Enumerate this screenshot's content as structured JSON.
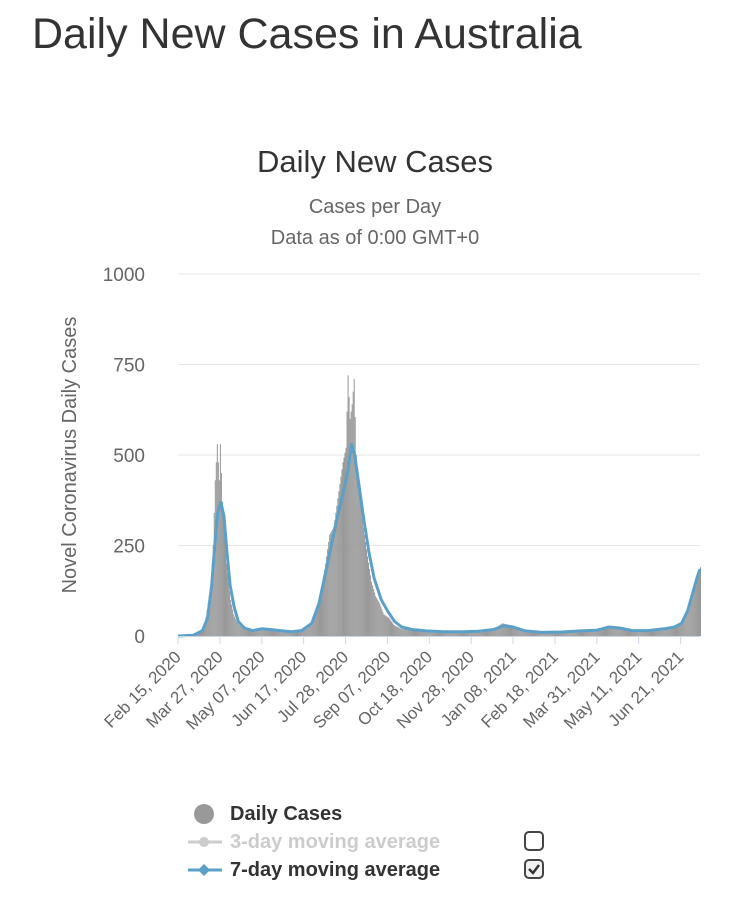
{
  "page": {
    "title": "Daily New Cases in Australia"
  },
  "chart_data": {
    "type": "bar",
    "title": "Daily New Cases",
    "subtitle": [
      "Cases per Day",
      "Data as of 0:00 GMT+0"
    ],
    "ylabel": "Novel Coronavirus Daily Cases",
    "ylim": [
      0,
      1000
    ],
    "yticks": [
      0,
      250,
      500,
      750,
      1000
    ],
    "xlim": [
      "2020-02-15",
      "2021-07-10"
    ],
    "xticks": [
      "Feb 15, 2020",
      "Mar 27, 2020",
      "May 07, 2020",
      "Jun 17, 2020",
      "Jul 28, 2020",
      "Sep 07, 2020",
      "Oct 18, 2020",
      "Nov 28, 2020",
      "Jan 08, 2021",
      "Feb 18, 2021",
      "Mar 31, 2021",
      "May 11, 2021",
      "Jun 21, 2021"
    ],
    "grid": true,
    "colors": {
      "bars": "#999999",
      "avg3": "#cccccc",
      "avg7": "#5aa0c8"
    },
    "daily_cases": [
      [
        "2020-02-15",
        0
      ],
      [
        "2020-03-01",
        3
      ],
      [
        "2020-03-08",
        15
      ],
      [
        "2020-03-12",
        35
      ],
      [
        "2020-03-15",
        90
      ],
      [
        "2020-03-18",
        150
      ],
      [
        "2020-03-20",
        250
      ],
      [
        "2020-03-22",
        430
      ],
      [
        "2020-03-24",
        530
      ],
      [
        "2020-03-26",
        430
      ],
      [
        "2020-03-27",
        530
      ],
      [
        "2020-03-29",
        370
      ],
      [
        "2020-03-31",
        300
      ],
      [
        "2020-04-02",
        200
      ],
      [
        "2020-04-04",
        150
      ],
      [
        "2020-04-06",
        100
      ],
      [
        "2020-04-09",
        60
      ],
      [
        "2020-04-12",
        40
      ],
      [
        "2020-04-15",
        30
      ],
      [
        "2020-04-20",
        20
      ],
      [
        "2020-04-25",
        15
      ],
      [
        "2020-05-05",
        18
      ],
      [
        "2020-05-15",
        15
      ],
      [
        "2020-05-25",
        12
      ],
      [
        "2020-06-05",
        10
      ],
      [
        "2020-06-15",
        15
      ],
      [
        "2020-06-20",
        25
      ],
      [
        "2020-06-25",
        40
      ],
      [
        "2020-06-30",
        70
      ],
      [
        "2020-07-04",
        130
      ],
      [
        "2020-07-08",
        200
      ],
      [
        "2020-07-12",
        280
      ],
      [
        "2020-07-16",
        300
      ],
      [
        "2020-07-20",
        380
      ],
      [
        "2020-07-22",
        420
      ],
      [
        "2020-07-25",
        480
      ],
      [
        "2020-07-28",
        520
      ],
      [
        "2020-07-30",
        720
      ],
      [
        "2020-08-01",
        600
      ],
      [
        "2020-08-03",
        640
      ],
      [
        "2020-08-05",
        710
      ],
      [
        "2020-08-07",
        500
      ],
      [
        "2020-08-10",
        400
      ],
      [
        "2020-08-14",
        300
      ],
      [
        "2020-08-18",
        220
      ],
      [
        "2020-08-22",
        150
      ],
      [
        "2020-08-26",
        110
      ],
      [
        "2020-08-30",
        90
      ],
      [
        "2020-09-03",
        60
      ],
      [
        "2020-09-08",
        50
      ],
      [
        "2020-09-13",
        30
      ],
      [
        "2020-09-20",
        20
      ],
      [
        "2020-10-01",
        15
      ],
      [
        "2020-10-15",
        12
      ],
      [
        "2020-11-01",
        10
      ],
      [
        "2020-11-20",
        12
      ],
      [
        "2020-12-05",
        12
      ],
      [
        "2020-12-20",
        20
      ],
      [
        "2020-12-28",
        35
      ],
      [
        "2021-01-05",
        30
      ],
      [
        "2021-01-15",
        15
      ],
      [
        "2021-02-01",
        10
      ],
      [
        "2021-02-20",
        10
      ],
      [
        "2021-03-10",
        12
      ],
      [
        "2021-03-25",
        15
      ],
      [
        "2021-04-05",
        18
      ],
      [
        "2021-04-15",
        25
      ],
      [
        "2021-04-25",
        20
      ],
      [
        "2021-05-10",
        15
      ],
      [
        "2021-05-25",
        15
      ],
      [
        "2021-06-05",
        20
      ],
      [
        "2021-06-15",
        25
      ],
      [
        "2021-06-22",
        40
      ],
      [
        "2021-06-28",
        80
      ],
      [
        "2021-07-03",
        130
      ],
      [
        "2021-07-07",
        165
      ],
      [
        "2021-07-10",
        190
      ]
    ],
    "series": [
      {
        "name": "Daily Cases",
        "visible": true
      },
      {
        "name": "3-day moving average",
        "visible": false
      },
      {
        "name": "7-day moving average",
        "visible": true,
        "values": [
          [
            "2020-02-15",
            0
          ],
          [
            "2020-03-01",
            2
          ],
          [
            "2020-03-10",
            15
          ],
          [
            "2020-03-15",
            50
          ],
          [
            "2020-03-19",
            140
          ],
          [
            "2020-03-22",
            250
          ],
          [
            "2020-03-25",
            340
          ],
          [
            "2020-03-28",
            370
          ],
          [
            "2020-03-31",
            330
          ],
          [
            "2020-04-03",
            230
          ],
          [
            "2020-04-06",
            140
          ],
          [
            "2020-04-10",
            80
          ],
          [
            "2020-04-14",
            40
          ],
          [
            "2020-04-20",
            22
          ],
          [
            "2020-04-28",
            15
          ],
          [
            "2020-05-07",
            20
          ],
          [
            "2020-05-15",
            18
          ],
          [
            "2020-05-25",
            15
          ],
          [
            "2020-06-05",
            12
          ],
          [
            "2020-06-15",
            15
          ],
          [
            "2020-06-25",
            35
          ],
          [
            "2020-07-02",
            90
          ],
          [
            "2020-07-08",
            170
          ],
          [
            "2020-07-14",
            250
          ],
          [
            "2020-07-20",
            330
          ],
          [
            "2020-07-25",
            390
          ],
          [
            "2020-07-30",
            450
          ],
          [
            "2020-08-03",
            530
          ],
          [
            "2020-08-06",
            500
          ],
          [
            "2020-08-10",
            420
          ],
          [
            "2020-08-15",
            320
          ],
          [
            "2020-08-20",
            230
          ],
          [
            "2020-08-25",
            160
          ],
          [
            "2020-09-01",
            100
          ],
          [
            "2020-09-07",
            70
          ],
          [
            "2020-09-14",
            40
          ],
          [
            "2020-09-21",
            25
          ],
          [
            "2020-10-01",
            18
          ],
          [
            "2020-10-15",
            14
          ],
          [
            "2020-11-01",
            12
          ],
          [
            "2020-11-20",
            12
          ],
          [
            "2020-12-05",
            13
          ],
          [
            "2020-12-20",
            18
          ],
          [
            "2020-12-30",
            28
          ],
          [
            "2021-01-08",
            25
          ],
          [
            "2021-01-20",
            14
          ],
          [
            "2021-02-05",
            10
          ],
          [
            "2021-02-25",
            11
          ],
          [
            "2021-03-15",
            14
          ],
          [
            "2021-03-31",
            16
          ],
          [
            "2021-04-12",
            25
          ],
          [
            "2021-04-22",
            22
          ],
          [
            "2021-05-05",
            15
          ],
          [
            "2021-05-20",
            15
          ],
          [
            "2021-06-05",
            20
          ],
          [
            "2021-06-15",
            25
          ],
          [
            "2021-06-22",
            35
          ],
          [
            "2021-06-28",
            70
          ],
          [
            "2021-07-03",
            120
          ],
          [
            "2021-07-07",
            160
          ],
          [
            "2021-07-10",
            185
          ]
        ]
      }
    ],
    "legend_position": "bottom"
  },
  "legend": {
    "items": [
      {
        "label": "Daily Cases",
        "symbol": "circle-icon",
        "color": "#999999",
        "state": ""
      },
      {
        "label": "3-day moving average",
        "symbol": "line-marker-icon",
        "color": "#cccccc",
        "state": "unchecked"
      },
      {
        "label": "7-day moving average",
        "symbol": "line-marker-icon",
        "color": "#5aa0c8",
        "state": "checked"
      }
    ]
  }
}
